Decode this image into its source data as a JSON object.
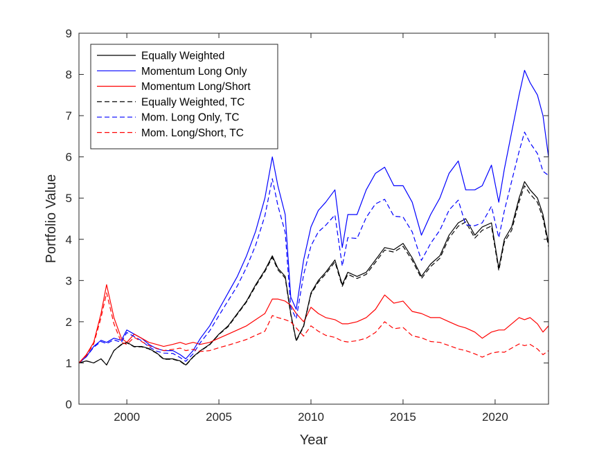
{
  "chart_data": {
    "type": "line",
    "title": "",
    "xlabel": "Year",
    "ylabel": "Portfolio Value",
    "xlim": [
      1997.4,
      2022.9
    ],
    "ylim": [
      0,
      9
    ],
    "xticks": [
      2000,
      2005,
      2010,
      2015,
      2020
    ],
    "yticks": [
      0,
      1,
      2,
      3,
      4,
      5,
      6,
      7,
      8,
      9
    ],
    "xtick_labels": [
      "2000",
      "2005",
      "2010",
      "2015",
      "2020"
    ],
    "ytick_labels": [
      "0",
      "1",
      "2",
      "3",
      "4",
      "5",
      "6",
      "7",
      "8",
      "9"
    ],
    "grid": false,
    "legend_position": "top-left",
    "series": [
      {
        "name": "Equally Weighted",
        "color": "#000000",
        "dash": "solid",
        "x": [
          1997.4,
          1997.8,
          1998.2,
          1998.6,
          1998.9,
          1999.3,
          1999.7,
          2000.0,
          2000.4,
          2000.8,
          2001.2,
          2001.6,
          2002.0,
          2002.5,
          2002.9,
          2003.2,
          2003.6,
          2004.0,
          2004.5,
          2005.0,
          2005.5,
          2006.0,
          2006.5,
          2007.0,
          2007.5,
          2007.9,
          2008.2,
          2008.6,
          2008.9,
          2009.2,
          2009.6,
          2010.0,
          2010.4,
          2010.8,
          2011.3,
          2011.7,
          2012.0,
          2012.5,
          2013.0,
          2013.5,
          2014.0,
          2014.5,
          2015.0,
          2015.5,
          2016.0,
          2016.5,
          2017.0,
          2017.5,
          2018.0,
          2018.4,
          2018.9,
          2019.3,
          2019.8,
          2020.2,
          2020.5,
          2020.9,
          2021.3,
          2021.6,
          2021.9,
          2022.3,
          2022.6,
          2022.9
        ],
        "values": [
          1.0,
          1.05,
          1.0,
          1.1,
          0.95,
          1.3,
          1.45,
          1.5,
          1.4,
          1.4,
          1.35,
          1.25,
          1.1,
          1.1,
          1.05,
          0.95,
          1.15,
          1.3,
          1.45,
          1.7,
          1.9,
          2.2,
          2.5,
          2.9,
          3.25,
          3.6,
          3.3,
          3.1,
          2.2,
          1.55,
          1.9,
          2.7,
          3.0,
          3.2,
          3.5,
          2.9,
          3.2,
          3.1,
          3.2,
          3.5,
          3.8,
          3.75,
          3.9,
          3.55,
          3.1,
          3.4,
          3.6,
          4.1,
          4.4,
          4.5,
          4.1,
          4.3,
          4.4,
          3.3,
          4.0,
          4.3,
          5.0,
          5.4,
          5.2,
          5.0,
          4.6,
          3.9
        ]
      },
      {
        "name": "Momentum Long Only",
        "color": "#0000ff",
        "dash": "solid",
        "x": [
          1997.4,
          1997.8,
          1998.2,
          1998.6,
          1998.9,
          1999.3,
          1999.7,
          2000.0,
          2000.4,
          2000.8,
          2001.2,
          2001.6,
          2002.0,
          2002.5,
          2002.9,
          2003.2,
          2003.6,
          2004.0,
          2004.5,
          2005.0,
          2005.5,
          2006.0,
          2006.5,
          2007.0,
          2007.5,
          2007.9,
          2008.2,
          2008.6,
          2008.9,
          2009.2,
          2009.6,
          2010.0,
          2010.4,
          2010.8,
          2011.3,
          2011.7,
          2012.0,
          2012.5,
          2013.0,
          2013.5,
          2014.0,
          2014.5,
          2015.0,
          2015.5,
          2016.0,
          2016.5,
          2017.0,
          2017.5,
          2018.0,
          2018.4,
          2018.9,
          2019.3,
          2019.8,
          2020.2,
          2020.5,
          2020.9,
          2021.3,
          2021.6,
          2021.9,
          2022.3,
          2022.6,
          2022.9
        ],
        "values": [
          1.0,
          1.15,
          1.4,
          1.55,
          1.5,
          1.6,
          1.55,
          1.8,
          1.7,
          1.6,
          1.45,
          1.35,
          1.3,
          1.3,
          1.2,
          1.1,
          1.3,
          1.6,
          1.9,
          2.3,
          2.7,
          3.1,
          3.6,
          4.2,
          5.0,
          6.0,
          5.3,
          4.6,
          2.6,
          2.3,
          3.5,
          4.3,
          4.7,
          4.9,
          5.2,
          3.8,
          4.6,
          4.6,
          5.2,
          5.6,
          5.75,
          5.3,
          5.3,
          4.9,
          4.1,
          4.6,
          5.0,
          5.6,
          5.9,
          5.2,
          5.2,
          5.3,
          5.8,
          4.9,
          5.7,
          6.6,
          7.5,
          8.1,
          7.8,
          7.5,
          7.0,
          6.0
        ]
      },
      {
        "name": "Momentum Long/Short",
        "color": "#ff0000",
        "dash": "solid",
        "x": [
          1997.4,
          1997.8,
          1998.2,
          1998.6,
          1998.9,
          1999.3,
          1999.7,
          2000.0,
          2000.4,
          2000.8,
          2001.2,
          2001.6,
          2002.0,
          2002.5,
          2002.9,
          2003.2,
          2003.6,
          2004.0,
          2004.5,
          2005.0,
          2005.5,
          2006.0,
          2006.5,
          2007.0,
          2007.5,
          2007.9,
          2008.2,
          2008.6,
          2008.9,
          2009.2,
          2009.6,
          2010.0,
          2010.4,
          2010.8,
          2011.3,
          2011.7,
          2012.0,
          2012.5,
          2013.0,
          2013.5,
          2014.0,
          2014.5,
          2015.0,
          2015.5,
          2016.0,
          2016.5,
          2017.0,
          2017.5,
          2018.0,
          2018.4,
          2018.9,
          2019.3,
          2019.8,
          2020.2,
          2020.5,
          2020.9,
          2021.3,
          2021.6,
          2021.9,
          2022.3,
          2022.6,
          2022.9
        ],
        "values": [
          1.0,
          1.2,
          1.5,
          2.2,
          2.9,
          2.1,
          1.6,
          1.5,
          1.7,
          1.6,
          1.5,
          1.45,
          1.4,
          1.45,
          1.5,
          1.45,
          1.5,
          1.45,
          1.5,
          1.6,
          1.7,
          1.8,
          1.9,
          2.05,
          2.2,
          2.55,
          2.55,
          2.5,
          2.4,
          2.2,
          2.0,
          2.35,
          2.2,
          2.1,
          2.05,
          1.95,
          1.95,
          2.0,
          2.1,
          2.3,
          2.65,
          2.45,
          2.5,
          2.25,
          2.2,
          2.1,
          2.1,
          2.0,
          1.9,
          1.85,
          1.75,
          1.6,
          1.75,
          1.8,
          1.8,
          1.95,
          2.1,
          2.05,
          2.1,
          1.95,
          1.75,
          1.9
        ]
      },
      {
        "name": "Equally Weighted, TC",
        "color": "#000000",
        "dash": "dashed",
        "x": [
          1997.4,
          1997.8,
          1998.2,
          1998.6,
          1998.9,
          1999.3,
          1999.7,
          2000.0,
          2000.4,
          2000.8,
          2001.2,
          2001.6,
          2002.0,
          2002.5,
          2002.9,
          2003.2,
          2003.6,
          2004.0,
          2004.5,
          2005.0,
          2005.5,
          2006.0,
          2006.5,
          2007.0,
          2007.5,
          2007.9,
          2008.2,
          2008.6,
          2008.9,
          2009.2,
          2009.6,
          2010.0,
          2010.4,
          2010.8,
          2011.3,
          2011.7,
          2012.0,
          2012.5,
          2013.0,
          2013.5,
          2014.0,
          2014.5,
          2015.0,
          2015.5,
          2016.0,
          2016.5,
          2017.0,
          2017.5,
          2018.0,
          2018.4,
          2018.9,
          2019.3,
          2019.8,
          2020.2,
          2020.5,
          2020.9,
          2021.3,
          2021.6,
          2021.9,
          2022.3,
          2022.6,
          2022.9
        ],
        "values": [
          1.0,
          1.05,
          1.0,
          1.1,
          0.95,
          1.3,
          1.44,
          1.49,
          1.39,
          1.39,
          1.34,
          1.24,
          1.09,
          1.09,
          1.04,
          0.94,
          1.14,
          1.29,
          1.44,
          1.69,
          1.88,
          2.18,
          2.48,
          2.87,
          3.22,
          3.56,
          3.26,
          3.06,
          2.17,
          1.53,
          1.88,
          2.67,
          2.96,
          3.16,
          3.45,
          2.86,
          3.15,
          3.05,
          3.15,
          3.44,
          3.74,
          3.69,
          3.83,
          3.49,
          3.05,
          3.34,
          3.54,
          4.03,
          4.32,
          4.42,
          4.03,
          4.22,
          4.32,
          3.24,
          3.93,
          4.22,
          4.91,
          5.3,
          5.1,
          4.9,
          4.51,
          3.82
        ]
      },
      {
        "name": "Mom. Long Only, TC",
        "color": "#0000ff",
        "dash": "dashed",
        "x": [
          1997.4,
          1997.8,
          1998.2,
          1998.6,
          1998.9,
          1999.3,
          1999.7,
          2000.0,
          2000.4,
          2000.8,
          2001.2,
          2001.6,
          2002.0,
          2002.5,
          2002.9,
          2003.2,
          2003.6,
          2004.0,
          2004.5,
          2005.0,
          2005.5,
          2006.0,
          2006.5,
          2007.0,
          2007.5,
          2007.9,
          2008.2,
          2008.6,
          2008.9,
          2009.2,
          2009.6,
          2010.0,
          2010.4,
          2010.8,
          2011.3,
          2011.7,
          2012.0,
          2012.5,
          2013.0,
          2013.5,
          2014.0,
          2014.5,
          2015.0,
          2015.5,
          2016.0,
          2016.5,
          2017.0,
          2017.5,
          2018.0,
          2018.4,
          2018.9,
          2019.3,
          2019.8,
          2020.2,
          2020.5,
          2020.9,
          2021.3,
          2021.6,
          2021.9,
          2022.3,
          2022.6,
          2022.9
        ],
        "values": [
          1.0,
          1.15,
          1.38,
          1.52,
          1.47,
          1.56,
          1.5,
          1.74,
          1.64,
          1.54,
          1.39,
          1.29,
          1.24,
          1.23,
          1.13,
          1.04,
          1.22,
          1.5,
          1.78,
          2.15,
          2.51,
          2.87,
          3.32,
          3.86,
          4.57,
          5.47,
          4.82,
          4.17,
          2.35,
          2.07,
          3.14,
          3.84,
          4.18,
          4.34,
          4.59,
          3.35,
          4.04,
          4.02,
          4.53,
          4.86,
          4.97,
          4.56,
          4.54,
          4.18,
          3.49,
          3.9,
          4.22,
          4.71,
          4.95,
          4.35,
          4.33,
          4.4,
          4.8,
          4.04,
          4.69,
          5.41,
          6.13,
          6.6,
          6.34,
          6.08,
          5.65,
          5.55
        ]
      },
      {
        "name": "Mom. Long/Short, TC",
        "color": "#ff0000",
        "dash": "dashed",
        "x": [
          1997.4,
          1997.8,
          1998.2,
          1998.6,
          1998.9,
          1999.3,
          1999.7,
          2000.0,
          2000.4,
          2000.8,
          2001.2,
          2001.6,
          2002.0,
          2002.5,
          2002.9,
          2003.2,
          2003.6,
          2004.0,
          2004.5,
          2005.0,
          2005.5,
          2006.0,
          2006.5,
          2007.0,
          2007.5,
          2007.9,
          2008.2,
          2008.6,
          2008.9,
          2009.2,
          2009.6,
          2010.0,
          2010.4,
          2010.8,
          2011.3,
          2011.7,
          2012.0,
          2012.5,
          2013.0,
          2013.5,
          2014.0,
          2014.5,
          2015.0,
          2015.5,
          2016.0,
          2016.5,
          2017.0,
          2017.5,
          2018.0,
          2018.4,
          2018.9,
          2019.3,
          2019.8,
          2020.2,
          2020.5,
          2020.9,
          2021.3,
          2021.6,
          2021.9,
          2022.3,
          2022.6,
          2022.9
        ],
        "values": [
          1.0,
          1.18,
          1.46,
          2.1,
          2.7,
          1.95,
          1.5,
          1.45,
          1.62,
          1.52,
          1.42,
          1.36,
          1.3,
          1.33,
          1.36,
          1.3,
          1.33,
          1.28,
          1.3,
          1.37,
          1.43,
          1.5,
          1.57,
          1.67,
          1.77,
          2.15,
          2.1,
          2.05,
          2.0,
          1.85,
          1.65,
          1.9,
          1.77,
          1.67,
          1.62,
          1.53,
          1.51,
          1.54,
          1.6,
          1.74,
          2.0,
          1.83,
          1.86,
          1.66,
          1.61,
          1.52,
          1.5,
          1.42,
          1.34,
          1.3,
          1.22,
          1.14,
          1.24,
          1.27,
          1.26,
          1.36,
          1.46,
          1.42,
          1.45,
          1.34,
          1.2,
          1.3
        ]
      }
    ]
  }
}
